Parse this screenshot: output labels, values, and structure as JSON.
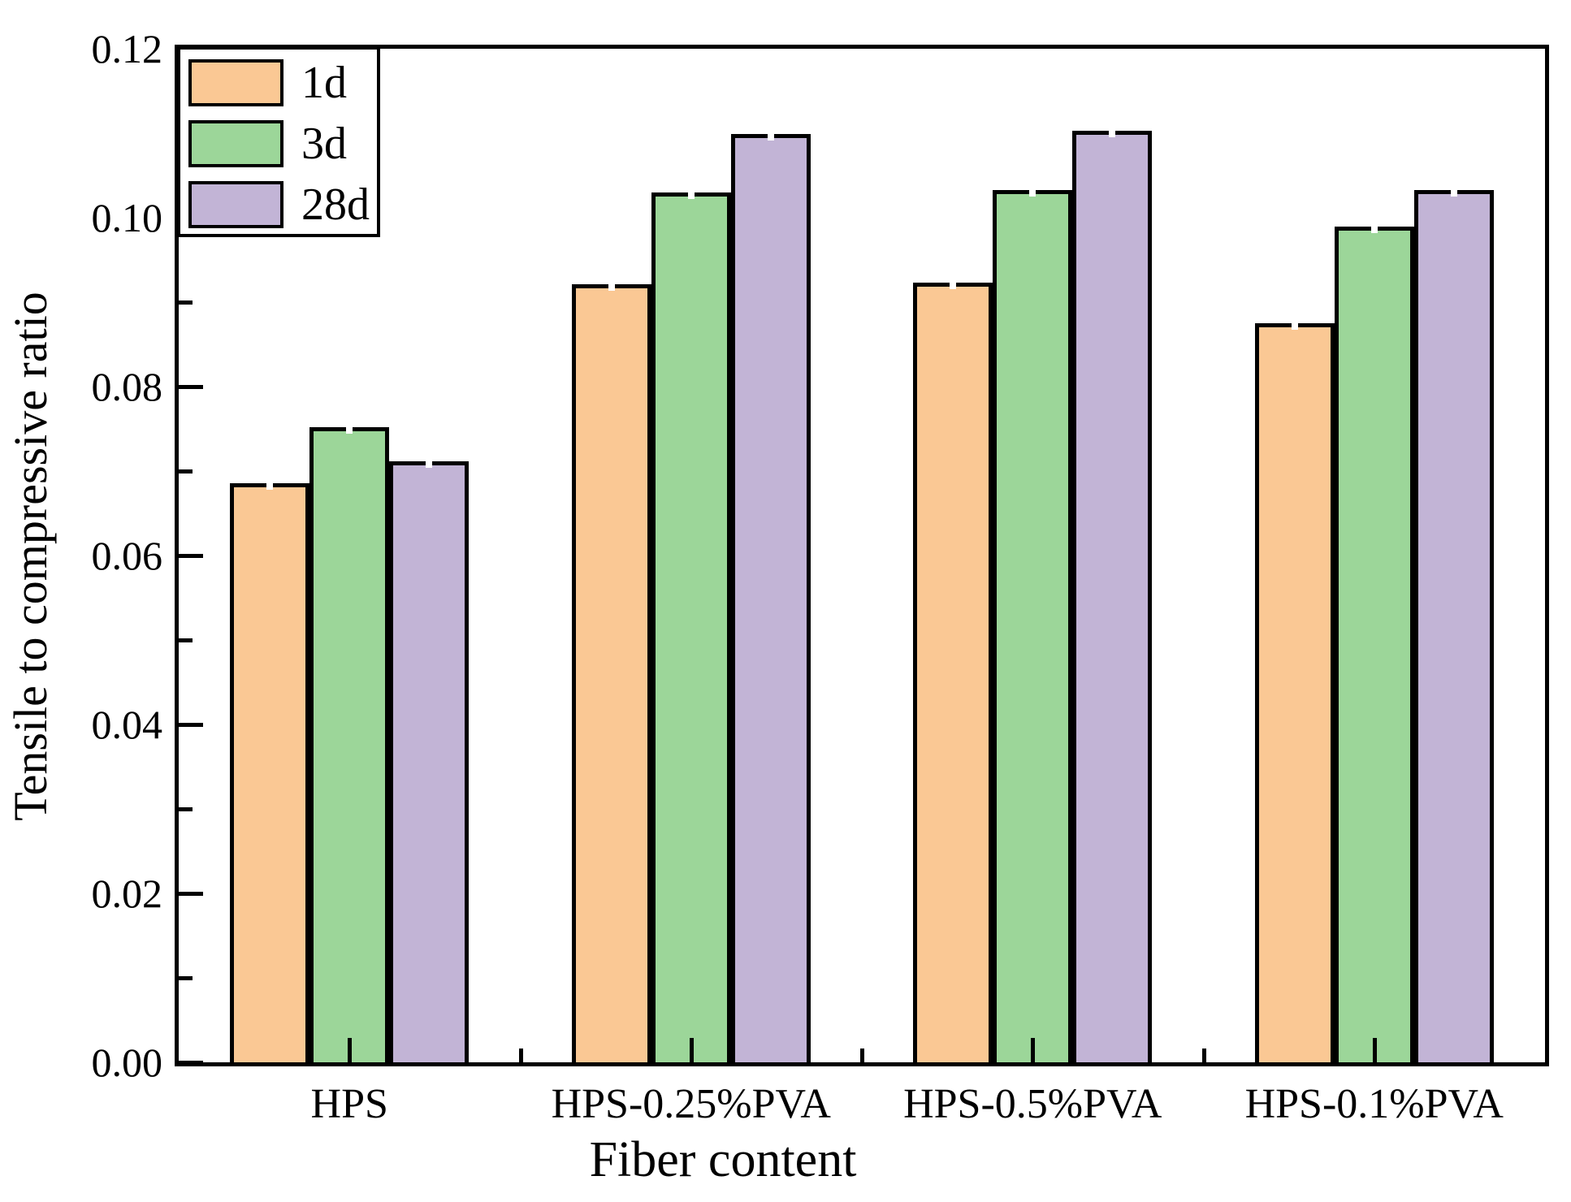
{
  "chart_data": {
    "type": "bar",
    "title": "",
    "xlabel": "Fiber content",
    "ylabel": "Tensile to compressive ratio",
    "categories": [
      "HPS",
      "HPS-0.25%PVA",
      "HPS-0.5%PVA",
      "HPS-0.1%PVA"
    ],
    "series": [
      {
        "name": "1d",
        "color": "#FAC894",
        "values": [
          0.0686,
          0.0921,
          0.0923,
          0.0875
        ]
      },
      {
        "name": "3d",
        "color": "#9CD699",
        "values": [
          0.0752,
          0.103,
          0.1033,
          0.0989
        ]
      },
      {
        "name": "28d",
        "color": "#C2B4D6",
        "values": [
          0.0712,
          0.1099,
          0.1103,
          0.1033
        ]
      }
    ],
    "ylim": [
      0,
      0.12
    ],
    "ytick_step": 0.02,
    "ytick_labels": [
      "0.00",
      "0.02",
      "0.04",
      "0.06",
      "0.08",
      "0.10",
      "0.12"
    ],
    "legend_position": "top-left",
    "grid": false,
    "bar_edge_color": "#000000",
    "error_bars": "tiny white caps at bar tops"
  }
}
